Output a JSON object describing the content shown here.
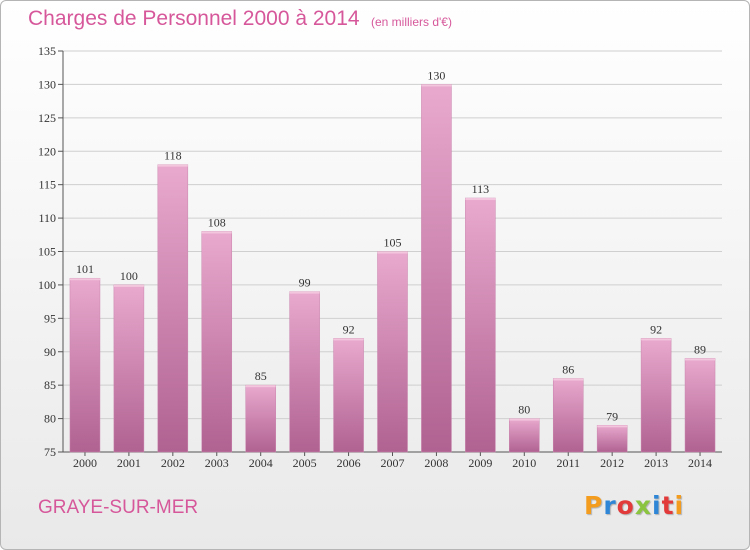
{
  "header": {
    "title": "Charges de Personnel 2000 à 2014",
    "subtitle": "(en milliers d'€)"
  },
  "footer": {
    "commune": "GRAYE-SUR-MER",
    "logo_text": "Proxiti",
    "logo_colors": [
      "#f39c1d",
      "#2f86d6",
      "#e23a3a",
      "#8bc43f",
      "#2f86d6",
      "#e23a3a",
      "#f39c1d"
    ]
  },
  "colors": {
    "text_accent": "#d6589b",
    "bar_light": "#e9a9ce",
    "bar_dark": "#b06291",
    "grid": "#cfcfcf"
  },
  "chart_data": {
    "type": "bar",
    "categories": [
      "2000",
      "2001",
      "2002",
      "2003",
      "2004",
      "2005",
      "2006",
      "2007",
      "2008",
      "2009",
      "2010",
      "2011",
      "2012",
      "2013",
      "2014"
    ],
    "values": [
      101,
      100,
      118,
      108,
      85,
      99,
      92,
      105,
      130,
      113,
      80,
      86,
      79,
      92,
      89
    ],
    "ylim": [
      75,
      135
    ],
    "yticks": [
      75,
      80,
      85,
      90,
      95,
      100,
      105,
      110,
      115,
      120,
      125,
      130,
      135
    ],
    "grid": true,
    "data_labels": true
  }
}
